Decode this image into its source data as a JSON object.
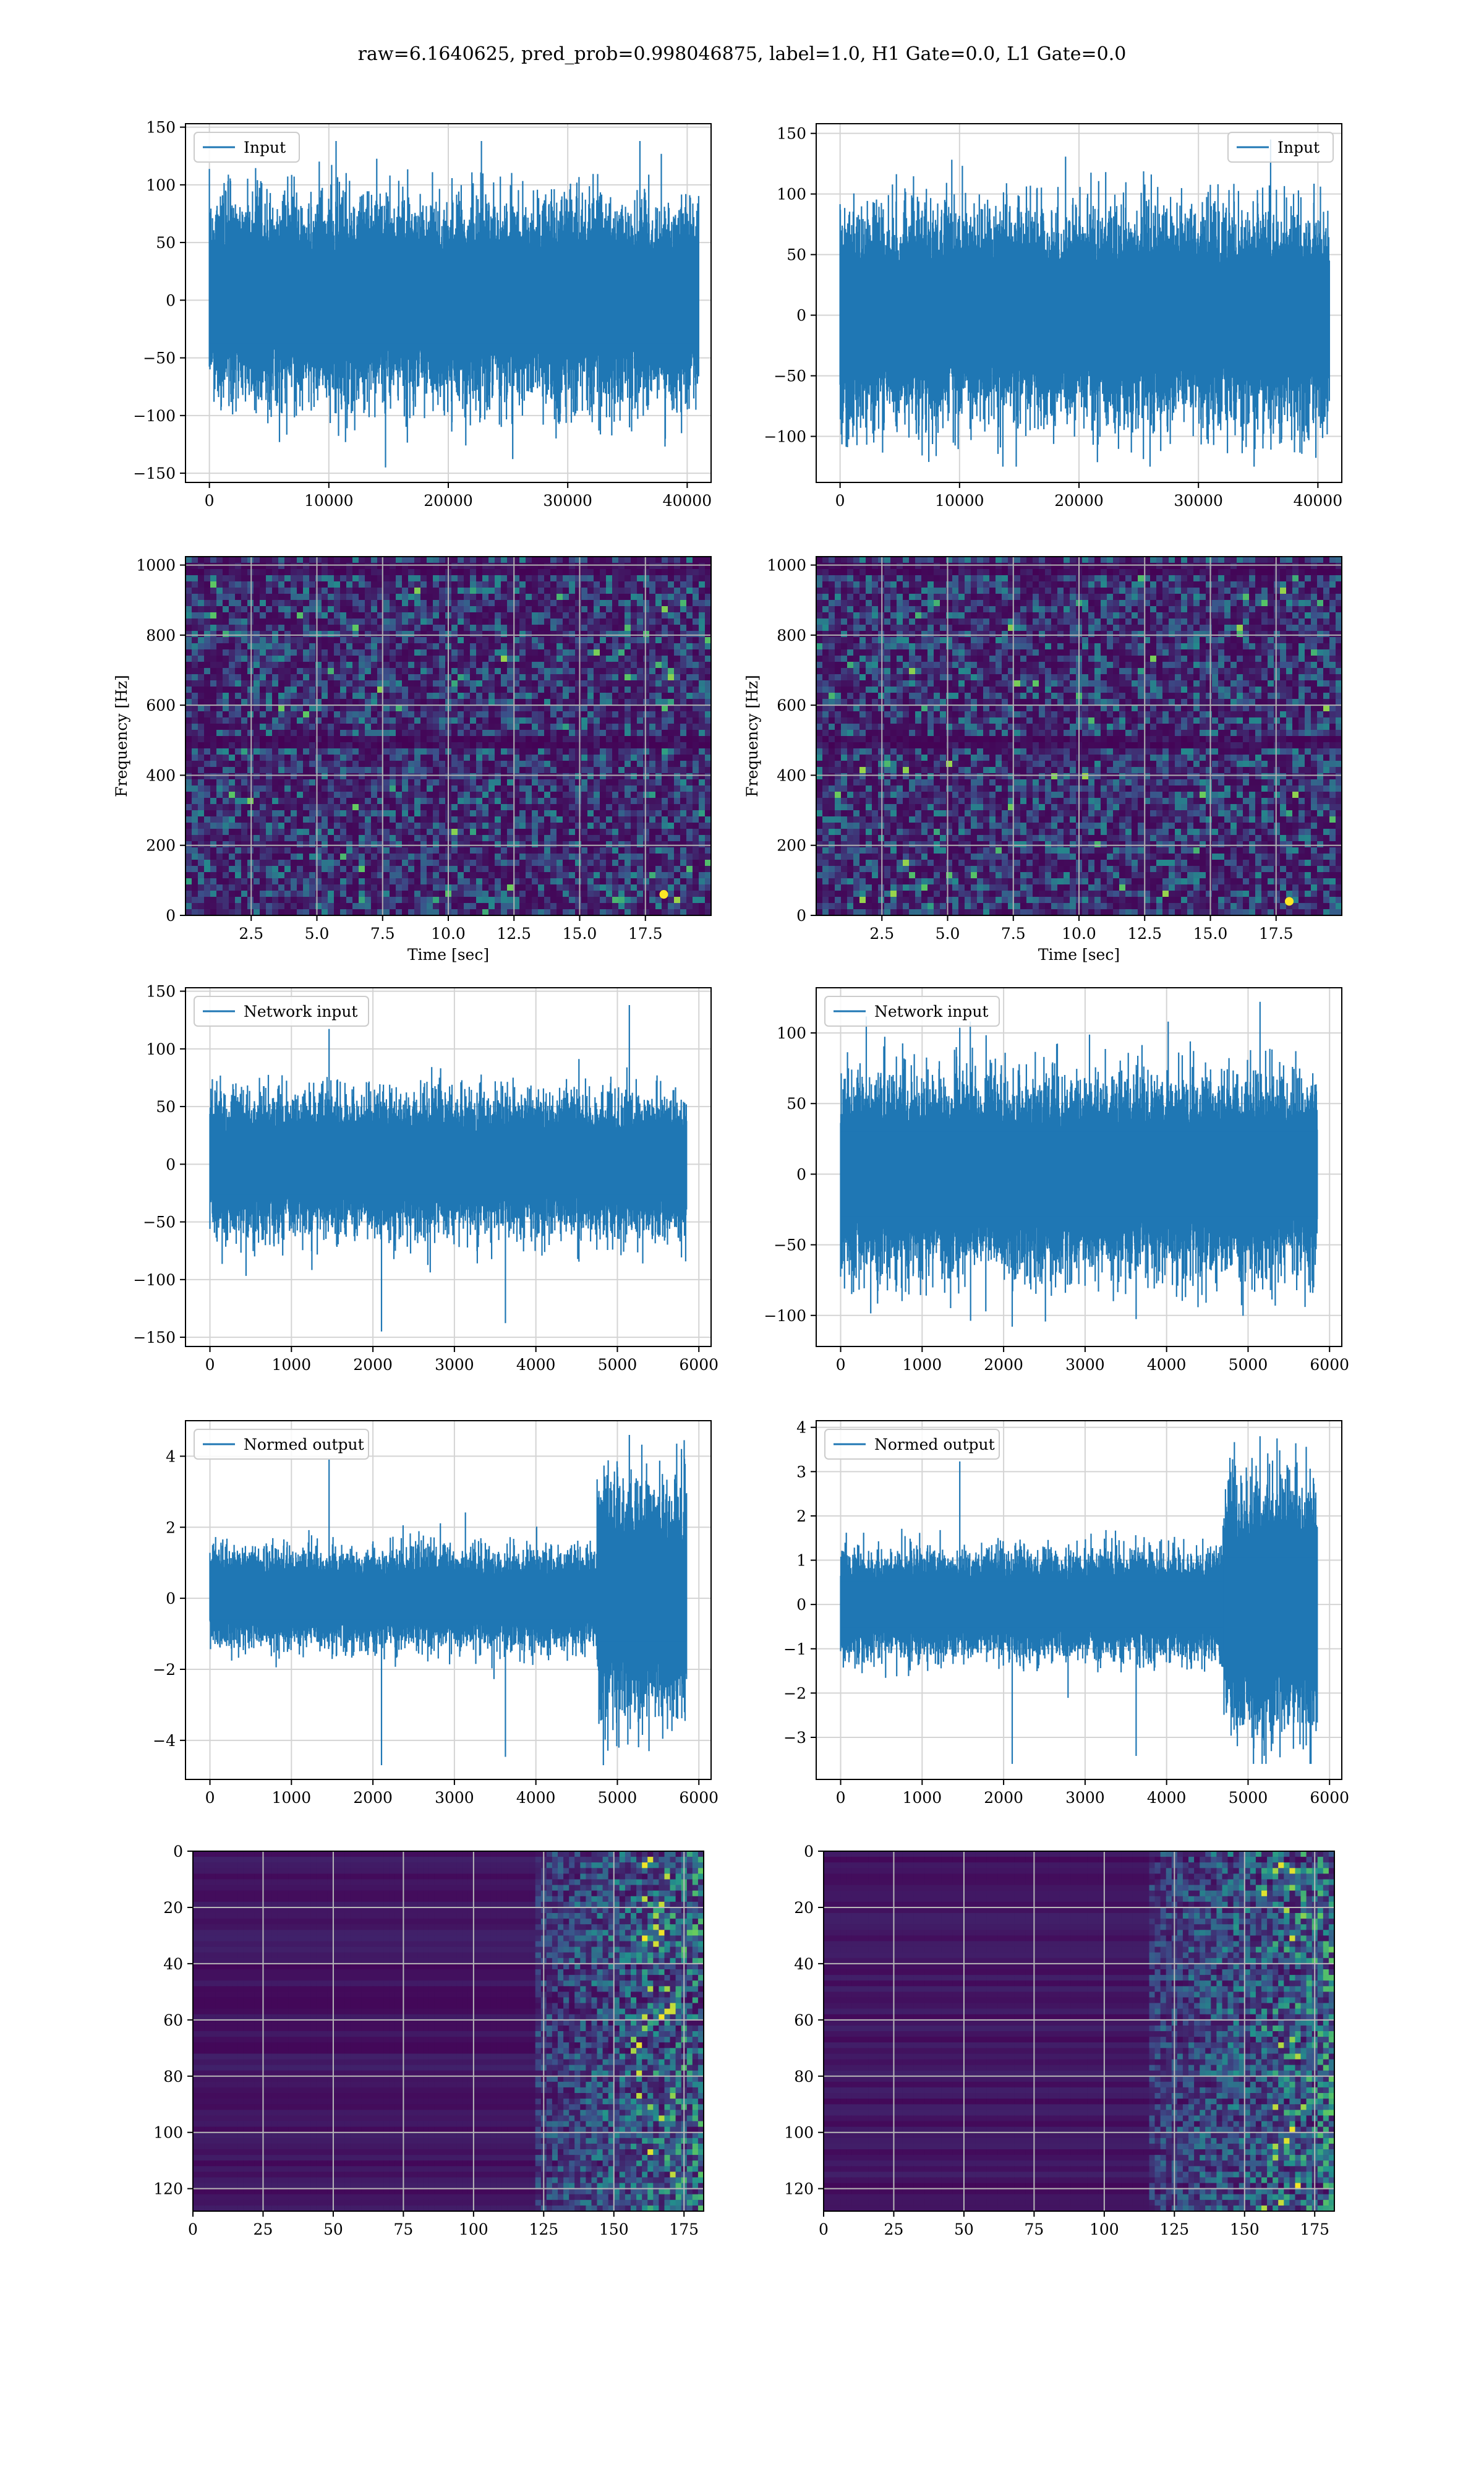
{
  "figure": {
    "suptitle": "raw=6.1640625, pred_prob=0.998046875, label=1.0, H1 Gate=0.0, L1 Gate=0.0"
  },
  "colors": {
    "line": "#1f77b4",
    "grid": "#d4d4d4",
    "spine": "#000000",
    "viridis_dark": "#440154",
    "viridis_mid": "#21918c",
    "viridis_bright": "#fde725"
  },
  "chart_data": [
    {
      "id": "h1-input",
      "type": "line",
      "title": "",
      "xlabel": "",
      "ylabel": "",
      "series": [
        {
          "name": "Input",
          "n_points": 40960,
          "amplitude_typical": 50,
          "amplitude_max": 138,
          "amplitude_min": -145
        }
      ],
      "xlim": [
        -2000,
        42000
      ],
      "ylim": [
        -158,
        153
      ],
      "xticks": [
        0,
        10000,
        20000,
        30000,
        40000
      ],
      "yticks": [
        -150,
        -100,
        -50,
        0,
        50,
        100,
        150
      ],
      "legend": "upper left",
      "grid": true
    },
    {
      "id": "l1-input",
      "type": "line",
      "title": "",
      "xlabel": "",
      "ylabel": "",
      "series": [
        {
          "name": "Input",
          "n_points": 40960,
          "amplitude_typical": 50,
          "amplitude_max": 145,
          "amplitude_min": -125
        }
      ],
      "xlim": [
        -2000,
        42000
      ],
      "ylim": [
        -138,
        158
      ],
      "xticks": [
        0,
        10000,
        20000,
        30000,
        40000
      ],
      "yticks": [
        -100,
        -50,
        0,
        50,
        100,
        150
      ],
      "legend": "upper right",
      "grid": true
    },
    {
      "id": "h1-spectrogram",
      "type": "heatmap",
      "xlabel": "Time [sec]",
      "ylabel": "Frequency [Hz]",
      "xlim": [
        0,
        20
      ],
      "ylim": [
        0,
        1024
      ],
      "xticks": [
        2.5,
        5.0,
        7.5,
        10.0,
        12.5,
        15.0,
        17.5
      ],
      "xticklabels": [
        "2.5",
        "5.0",
        "7.5",
        "10.0",
        "12.5",
        "15.0",
        "17.5"
      ],
      "yticks": [
        0,
        200,
        400,
        600,
        800,
        1000
      ],
      "colormap": "viridis",
      "bright_spots": [
        {
          "t": 18.2,
          "f": 60
        }
      ],
      "grid": true
    },
    {
      "id": "l1-spectrogram",
      "type": "heatmap",
      "xlabel": "Time [sec]",
      "ylabel": "Frequency [Hz]",
      "xlim": [
        0,
        20
      ],
      "ylim": [
        0,
        1024
      ],
      "xticks": [
        2.5,
        5.0,
        7.5,
        10.0,
        12.5,
        15.0,
        17.5
      ],
      "xticklabels": [
        "2.5",
        "5.0",
        "7.5",
        "10.0",
        "12.5",
        "15.0",
        "17.5"
      ],
      "yticks": [
        0,
        200,
        400,
        600,
        800,
        1000
      ],
      "colormap": "viridis",
      "bright_spots": [
        {
          "t": 18.0,
          "f": 40
        }
      ],
      "grid": true
    },
    {
      "id": "h1-network-input",
      "type": "line",
      "series": [
        {
          "name": "Network input",
          "n_points": 5850,
          "amplitude_typical": 35,
          "amplitude_max": 138,
          "amplitude_min": -145
        }
      ],
      "xlim": [
        -300,
        6150
      ],
      "ylim": [
        -158,
        153
      ],
      "xticks": [
        0,
        1000,
        2000,
        3000,
        4000,
        5000,
        6000
      ],
      "yticks": [
        -150,
        -100,
        -50,
        0,
        50,
        100,
        150
      ],
      "legend": "upper left",
      "grid": true
    },
    {
      "id": "l1-network-input",
      "type": "line",
      "series": [
        {
          "name": "Network input",
          "n_points": 5850,
          "amplitude_typical": 40,
          "amplitude_max": 122,
          "amplitude_min": -108
        }
      ],
      "xlim": [
        -300,
        6150
      ],
      "ylim": [
        -122,
        132
      ],
      "xticks": [
        0,
        1000,
        2000,
        3000,
        4000,
        5000,
        6000
      ],
      "yticks": [
        -100,
        -50,
        0,
        50,
        100
      ],
      "legend": "upper left",
      "grid": true
    },
    {
      "id": "h1-normed-output",
      "type": "line",
      "series": [
        {
          "name": "Normed output",
          "n_points": 5850,
          "amplitude_typical": 0.8,
          "burst_start": 4750,
          "amplitude_max": 4.6,
          "amplitude_min": -4.7
        }
      ],
      "xlim": [
        -300,
        6150
      ],
      "ylim": [
        -5.1,
        5.0
      ],
      "xticks": [
        0,
        1000,
        2000,
        3000,
        4000,
        5000,
        6000
      ],
      "yticks": [
        -4,
        -2,
        0,
        2,
        4
      ],
      "legend": "upper left",
      "grid": true
    },
    {
      "id": "l1-normed-output",
      "type": "line",
      "series": [
        {
          "name": "Normed output",
          "n_points": 5850,
          "amplitude_typical": 0.7,
          "burst_start": 4700,
          "amplitude_max": 3.8,
          "amplitude_min": -3.6
        }
      ],
      "xlim": [
        -300,
        6150
      ],
      "ylim": [
        -3.95,
        4.15
      ],
      "xticks": [
        0,
        1000,
        2000,
        3000,
        4000,
        5000,
        6000
      ],
      "yticks": [
        -3,
        -2,
        -1,
        0,
        1,
        2,
        3,
        4
      ],
      "legend": "upper left",
      "grid": true
    },
    {
      "id": "h1-features",
      "type": "heatmap",
      "xlim": [
        0,
        182
      ],
      "ylim": [
        128,
        0
      ],
      "xticks": [
        0,
        25,
        50,
        75,
        100,
        125,
        150,
        175
      ],
      "yticks": [
        0,
        20,
        40,
        60,
        80,
        100,
        120
      ],
      "colormap": "viridis",
      "active_from_column": 120,
      "grid": true
    },
    {
      "id": "l1-features",
      "type": "heatmap",
      "xlim": [
        0,
        182
      ],
      "ylim": [
        128,
        0
      ],
      "xticks": [
        0,
        25,
        50,
        75,
        100,
        125,
        150,
        175
      ],
      "yticks": [
        0,
        20,
        40,
        60,
        80,
        100,
        120
      ],
      "colormap": "viridis",
      "active_from_column": 115,
      "grid": true
    }
  ]
}
